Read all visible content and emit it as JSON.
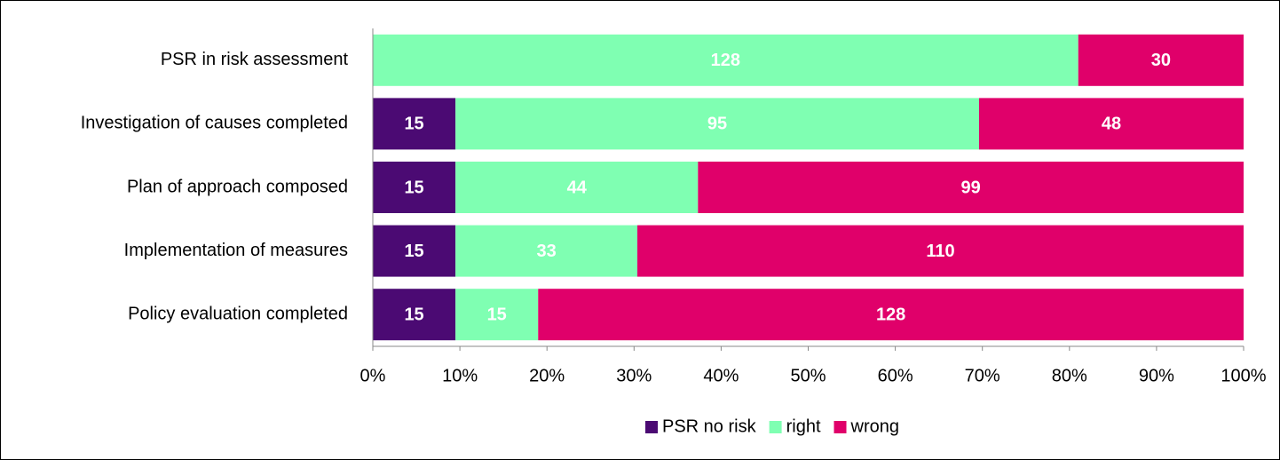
{
  "chart_data": {
    "type": "stacked-bar-100",
    "categories": [
      "PSR in risk assessment",
      "Investigation of causes completed",
      "Plan of approach composed",
      "Implementation of measures",
      "Policy evaluation completed"
    ],
    "series": [
      {
        "name": "PSR no risk",
        "color": "#4b0a73",
        "values": [
          0,
          15,
          15,
          15,
          15
        ]
      },
      {
        "name": "right",
        "color": "#7fffb2",
        "values": [
          128,
          95,
          44,
          33,
          15
        ]
      },
      {
        "name": "wrong",
        "color": "#e0006a",
        "values": [
          30,
          48,
          99,
          110,
          128
        ]
      }
    ],
    "xlim": [
      0,
      100
    ],
    "xticks": [
      {
        "value": 0,
        "label": "0%"
      },
      {
        "value": 10,
        "label": "10%"
      },
      {
        "value": 20,
        "label": "20%"
      },
      {
        "value": 30,
        "label": "30%"
      },
      {
        "value": 40,
        "label": "40%"
      },
      {
        "value": 50,
        "label": "50%"
      },
      {
        "value": 60,
        "label": "60%"
      },
      {
        "value": 70,
        "label": "70%"
      },
      {
        "value": 80,
        "label": "80%"
      },
      {
        "value": 90,
        "label": "90%"
      },
      {
        "value": 100,
        "label": "100%"
      }
    ],
    "legend": "bottom"
  }
}
